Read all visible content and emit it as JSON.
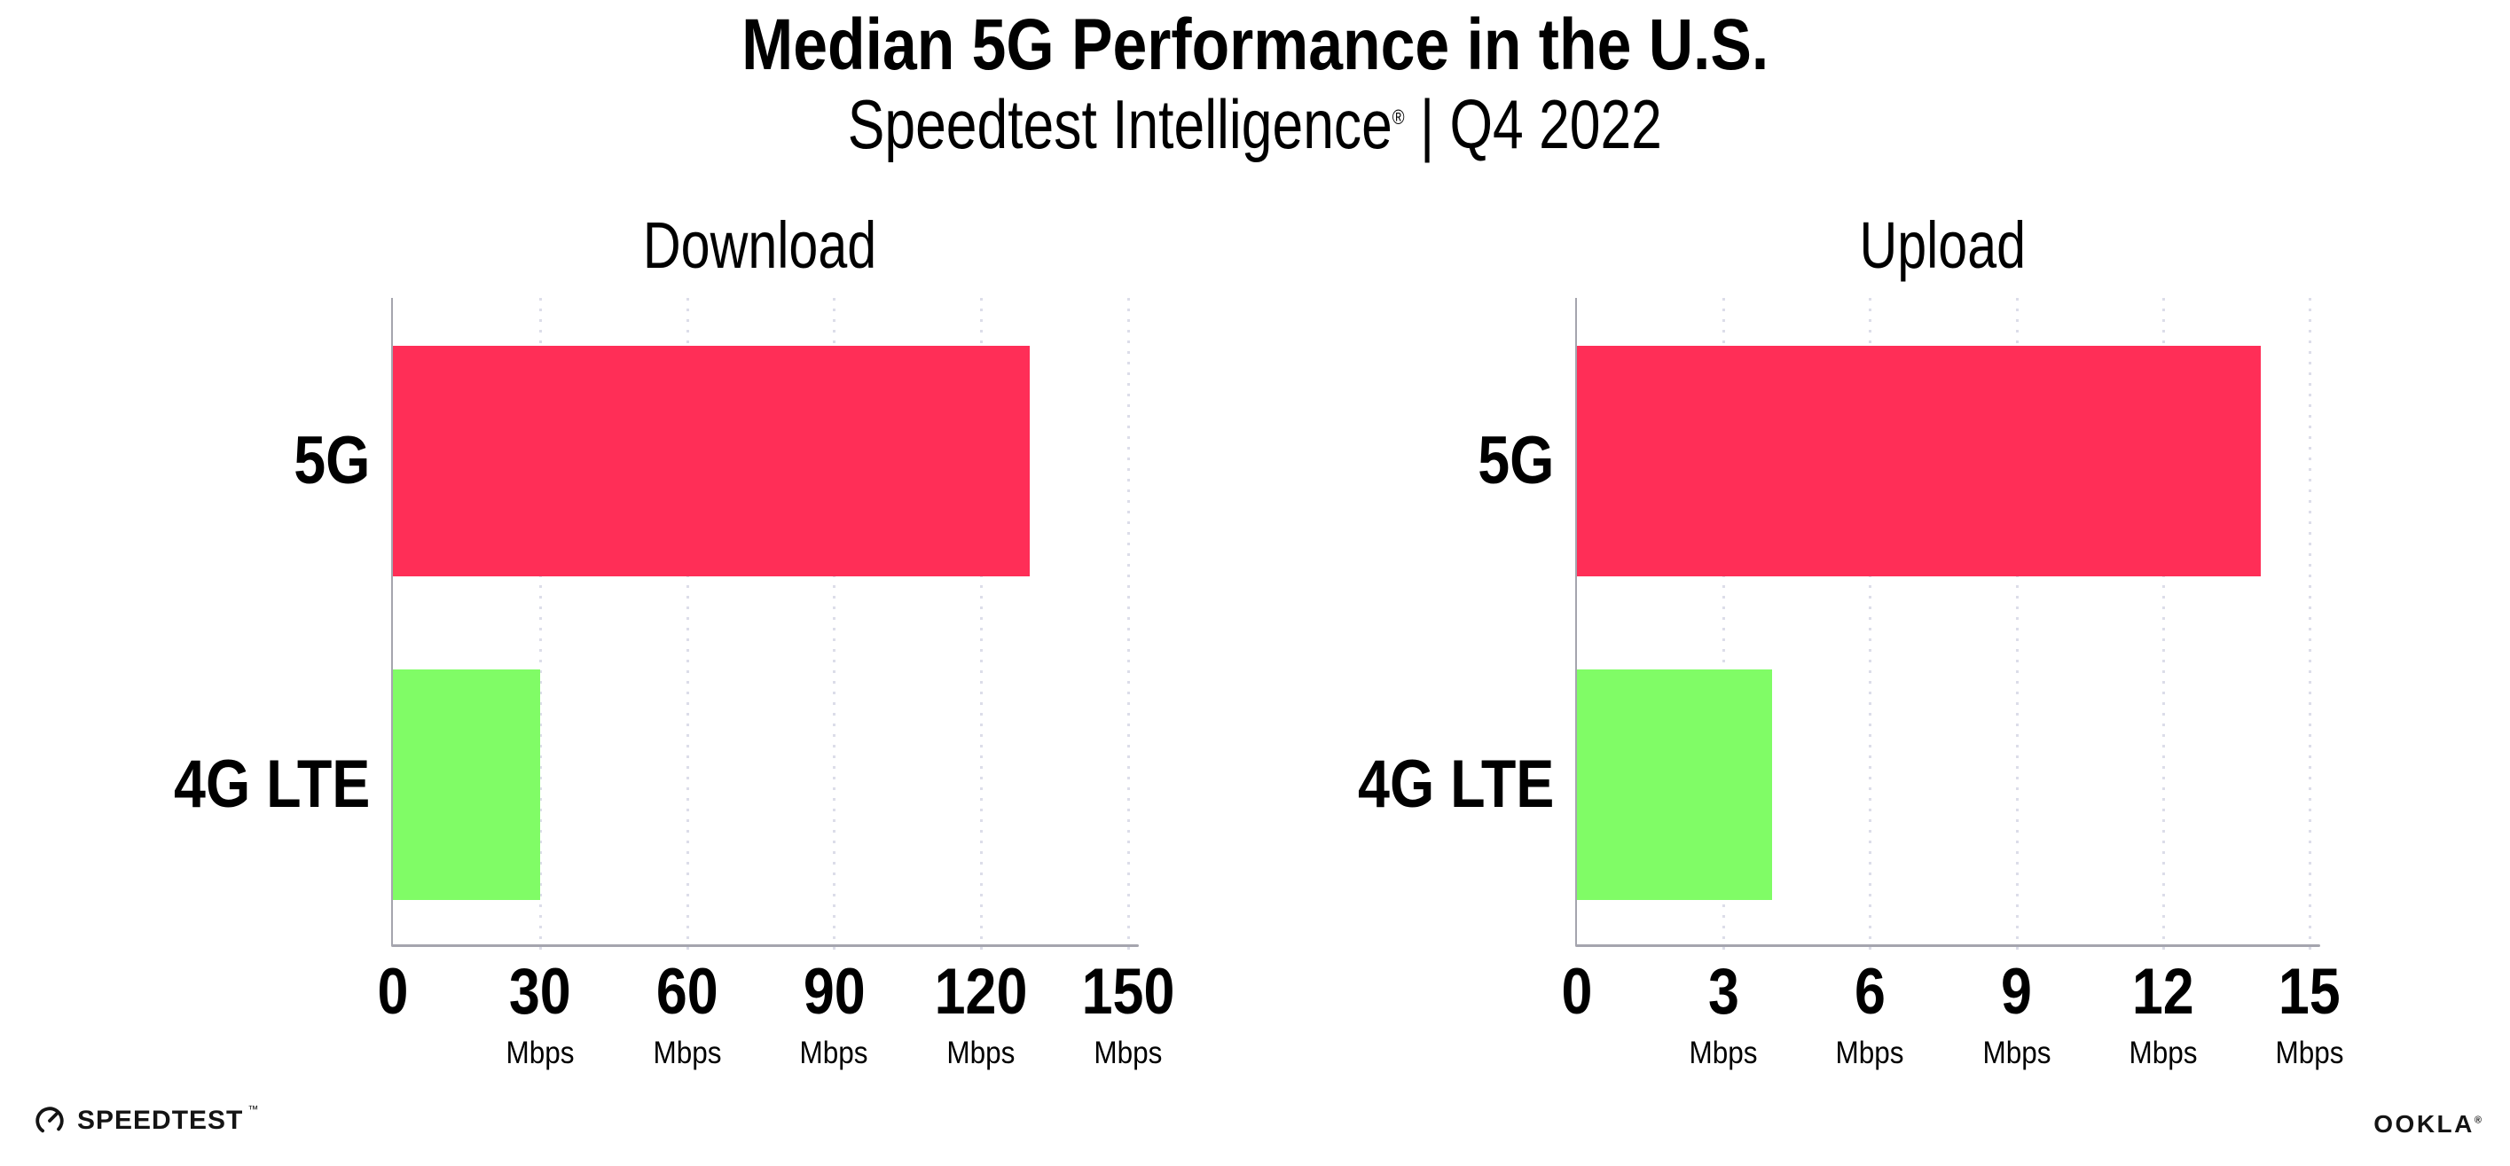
{
  "header": {
    "title": "Median 5G Performance in the U.S.",
    "subtitle_brand": "Speedtest Intelligence",
    "subtitle_mark": "®",
    "subtitle_rest": " | Q4 2022"
  },
  "chart_data": [
    {
      "type": "bar",
      "orientation": "horizontal",
      "title": "Download",
      "categories": [
        "5G",
        "4G LTE"
      ],
      "values": [
        130,
        30
      ],
      "unit": "Mbps",
      "xlabel": "",
      "ylabel": "",
      "xlim": [
        0,
        150
      ],
      "xticks": [
        0,
        30,
        60,
        90,
        120,
        150
      ],
      "bar_colors": [
        "#ff2e57",
        "#80fc66"
      ],
      "grid": "vertical-dotted",
      "legend": false
    },
    {
      "type": "bar",
      "orientation": "horizontal",
      "title": "Upload",
      "categories": [
        "5G",
        "4G LTE"
      ],
      "values": [
        14,
        4
      ],
      "unit": "Mbps",
      "xlabel": "",
      "ylabel": "",
      "xlim": [
        0,
        15
      ],
      "xticks": [
        0,
        3,
        6,
        9,
        12,
        15
      ],
      "bar_colors": [
        "#ff2e57",
        "#80fc66"
      ],
      "grid": "vertical-dotted",
      "legend": false
    }
  ],
  "footer": {
    "speedtest_label": "SPEEDTEST",
    "speedtest_mark": "™",
    "gauge_icon": "speedometer-gauge-icon",
    "ookla_label": "OOKLA",
    "ookla_mark": "®"
  },
  "colors": {
    "bar_5g": "#ff2e57",
    "bar_4g_lte": "#80fc66",
    "axis": "#a5a5ae",
    "gridline": "#dcdde9",
    "text": "#000000",
    "logo": "#141414"
  }
}
